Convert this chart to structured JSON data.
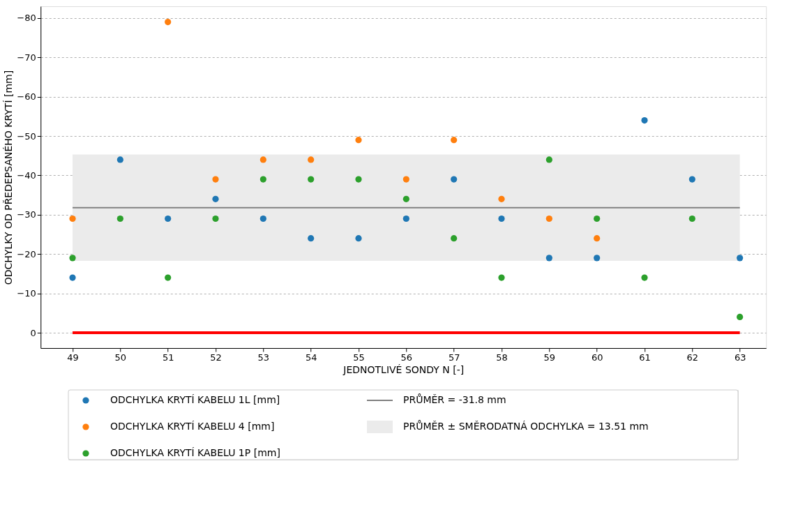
{
  "chart_data": {
    "type": "scatter",
    "xlabel": "JEDNOTLIVÉ SONDY N [-]",
    "ylabel": "ODCHYLKY OD PŘEDEPSANÉHO KRYTÍ [mm]",
    "x": [
      49,
      50,
      51,
      52,
      53,
      54,
      55,
      56,
      57,
      58,
      59,
      60,
      61,
      62,
      63
    ],
    "series": [
      {
        "name": "ODCHYLKA KRYTÍ KABELU 1L [mm]",
        "color": "#1f77b4",
        "values": [
          -14,
          -44,
          -29,
          -34,
          -29,
          -24,
          -24,
          -29,
          -39,
          -29,
          -19,
          -19,
          -54,
          -39,
          -19
        ]
      },
      {
        "name": "ODCHYLKA KRYTÍ KABELU 4 [mm]",
        "color": "#ff7f0e",
        "values": [
          -29,
          null,
          -79,
          -39,
          -44,
          -44,
          -49,
          -39,
          -49,
          -34,
          -29,
          -24,
          null,
          null,
          null
        ]
      },
      {
        "name": "ODCHYLKA KRYTÍ KABELU 1P [mm]",
        "color": "#2ca02c",
        "values": [
          -19,
          -29,
          -14,
          -29,
          -39,
          -39,
          -39,
          -34,
          -24,
          -14,
          -44,
          -29,
          -14,
          -29,
          -4
        ]
      }
    ],
    "ref_lines": [
      {
        "axis": "y",
        "value": -31.8,
        "label": "PRŮMĚR = -31.8 mm",
        "color": "#808080"
      },
      {
        "axis": "y",
        "value": 0,
        "color": "#ff0000"
      }
    ],
    "bands": [
      {
        "axis": "y",
        "from": -45.31,
        "to": -18.29,
        "label": "PRŮMĚR ± SMĚRODATNÁ ODCHYLKA = 13.51 mm",
        "color": "#ebebeb"
      }
    ],
    "xlim": [
      48.33,
      63.55
    ],
    "xticks": [
      49,
      50,
      51,
      52,
      53,
      54,
      55,
      56,
      57,
      58,
      59,
      60,
      61,
      62,
      63
    ],
    "ylim": [
      3.9,
      -83
    ],
    "yticks": [
      0,
      -10,
      -20,
      -30,
      -40,
      -50,
      -60,
      -70,
      -80
    ],
    "grid": "y",
    "legend": "bottom",
    "marker": "circle"
  }
}
